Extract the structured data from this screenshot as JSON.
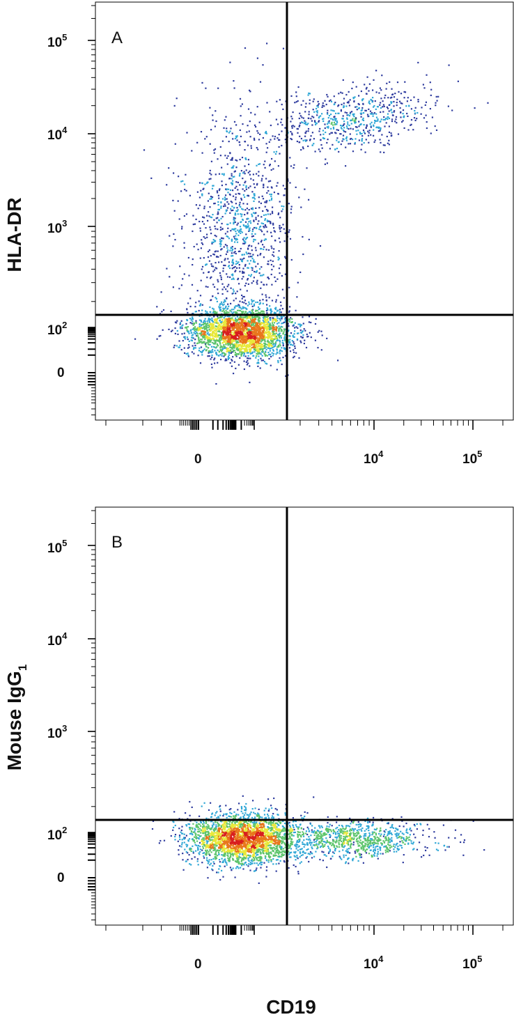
{
  "chart_data": [
    {
      "type": "scatter",
      "subtype": "flow-cytometry-density-dot-plot",
      "panel_label": "A",
      "xlabel": "CD19",
      "ylabel": "HLA-DR",
      "ylabel_subscript": "",
      "x_scale": "biexponential",
      "y_scale": "biexponential",
      "x_ticks": [
        {
          "base": "0",
          "exp": ""
        },
        {
          "base": "10",
          "exp": "4"
        },
        {
          "base": "10",
          "exp": "5"
        }
      ],
      "y_ticks": [
        {
          "base": "0",
          "exp": ""
        },
        {
          "base": "10",
          "exp": "2"
        },
        {
          "base": "10",
          "exp": "3"
        },
        {
          "base": "10",
          "exp": "4"
        },
        {
          "base": "10",
          "exp": "5"
        }
      ],
      "quadrant_gates": {
        "x": 1500,
        "y": 150
      },
      "populations": [
        {
          "description": "CD19-negative, HLA-DR-negative main population",
          "x_center": 200,
          "y_center": 60,
          "density": "high"
        },
        {
          "description": "CD19-negative, HLA-DR-positive streak",
          "x_center": 150,
          "y_center": 1000,
          "density": "medium"
        },
        {
          "description": "CD19-positive, HLA-DR-high B cells",
          "x_center": 6000,
          "y_center": 15000,
          "density": "medium"
        }
      ]
    },
    {
      "type": "scatter",
      "subtype": "flow-cytometry-density-dot-plot",
      "panel_label": "B",
      "xlabel": "CD19",
      "ylabel": "Mouse IgG",
      "ylabel_subscript": "1",
      "x_scale": "biexponential",
      "y_scale": "biexponential",
      "x_ticks": [
        {
          "base": "0",
          "exp": ""
        },
        {
          "base": "10",
          "exp": "4"
        },
        {
          "base": "10",
          "exp": "5"
        }
      ],
      "y_ticks": [
        {
          "base": "0",
          "exp": ""
        },
        {
          "base": "10",
          "exp": "2"
        },
        {
          "base": "10",
          "exp": "3"
        },
        {
          "base": "10",
          "exp": "4"
        },
        {
          "base": "10",
          "exp": "5"
        }
      ],
      "quadrant_gates": {
        "x": 1500,
        "y": 150
      },
      "populations": [
        {
          "description": "CD19-negative, isotype-negative main population",
          "x_center": 200,
          "y_center": 55,
          "density": "high"
        },
        {
          "description": "CD19-positive, isotype-negative population",
          "x_center": 6000,
          "y_center": 50,
          "density": "medium"
        }
      ]
    }
  ],
  "colors": {
    "density_low": "#2e3b9e",
    "density_mid_low": "#2fa7d6",
    "density_mid": "#5cc46b",
    "density_mid_high": "#e8e83a",
    "density_high": "#e8771c",
    "density_max": "#d81e1e",
    "gate_line": "#000000",
    "axes": "#000000"
  }
}
